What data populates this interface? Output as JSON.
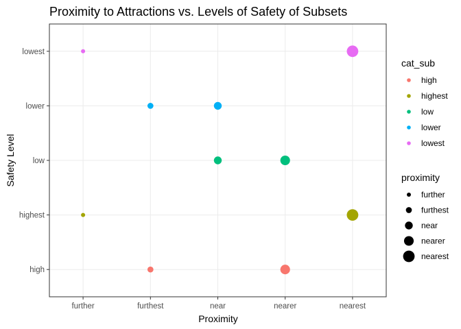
{
  "chart_data": {
    "type": "scatter",
    "title": "Proximity to Attractions vs. Levels of Safety of Subsets",
    "xlabel": "Proximity",
    "ylabel": "Safety Level",
    "x_categories": [
      "further",
      "furthest",
      "near",
      "nearer",
      "nearest"
    ],
    "y_categories": [
      "high",
      "highest",
      "low",
      "lower",
      "lowest"
    ],
    "grid": true,
    "legend_placement": "right",
    "points": [
      {
        "x": "furthest",
        "y": "high",
        "cat_sub": "high",
        "proximity": "furthest"
      },
      {
        "x": "nearer",
        "y": "high",
        "cat_sub": "high",
        "proximity": "nearer"
      },
      {
        "x": "further",
        "y": "highest",
        "cat_sub": "highest",
        "proximity": "further"
      },
      {
        "x": "nearest",
        "y": "highest",
        "cat_sub": "highest",
        "proximity": "nearest"
      },
      {
        "x": "near",
        "y": "low",
        "cat_sub": "low",
        "proximity": "near"
      },
      {
        "x": "nearer",
        "y": "low",
        "cat_sub": "low",
        "proximity": "nearer"
      },
      {
        "x": "furthest",
        "y": "lower",
        "cat_sub": "lower",
        "proximity": "furthest"
      },
      {
        "x": "near",
        "y": "lower",
        "cat_sub": "lower",
        "proximity": "near"
      },
      {
        "x": "further",
        "y": "lowest",
        "cat_sub": "lowest",
        "proximity": "further"
      },
      {
        "x": "nearest",
        "y": "lowest",
        "cat_sub": "lowest",
        "proximity": "nearest"
      }
    ],
    "color_legend": {
      "title": "cat_sub",
      "entries": [
        {
          "label": "high",
          "color": "#F8766D"
        },
        {
          "label": "highest",
          "color": "#A3A500"
        },
        {
          "label": "low",
          "color": "#00BF7D"
        },
        {
          "label": "lower",
          "color": "#00B0F6"
        },
        {
          "label": "lowest",
          "color": "#E76BF3"
        }
      ]
    },
    "size_legend": {
      "title": "proximity",
      "entries": [
        {
          "label": "further",
          "rank": 1
        },
        {
          "label": "furthest",
          "rank": 2
        },
        {
          "label": "near",
          "rank": 3
        },
        {
          "label": "nearer",
          "rank": 4
        },
        {
          "label": "nearest",
          "rank": 5
        }
      ]
    }
  }
}
